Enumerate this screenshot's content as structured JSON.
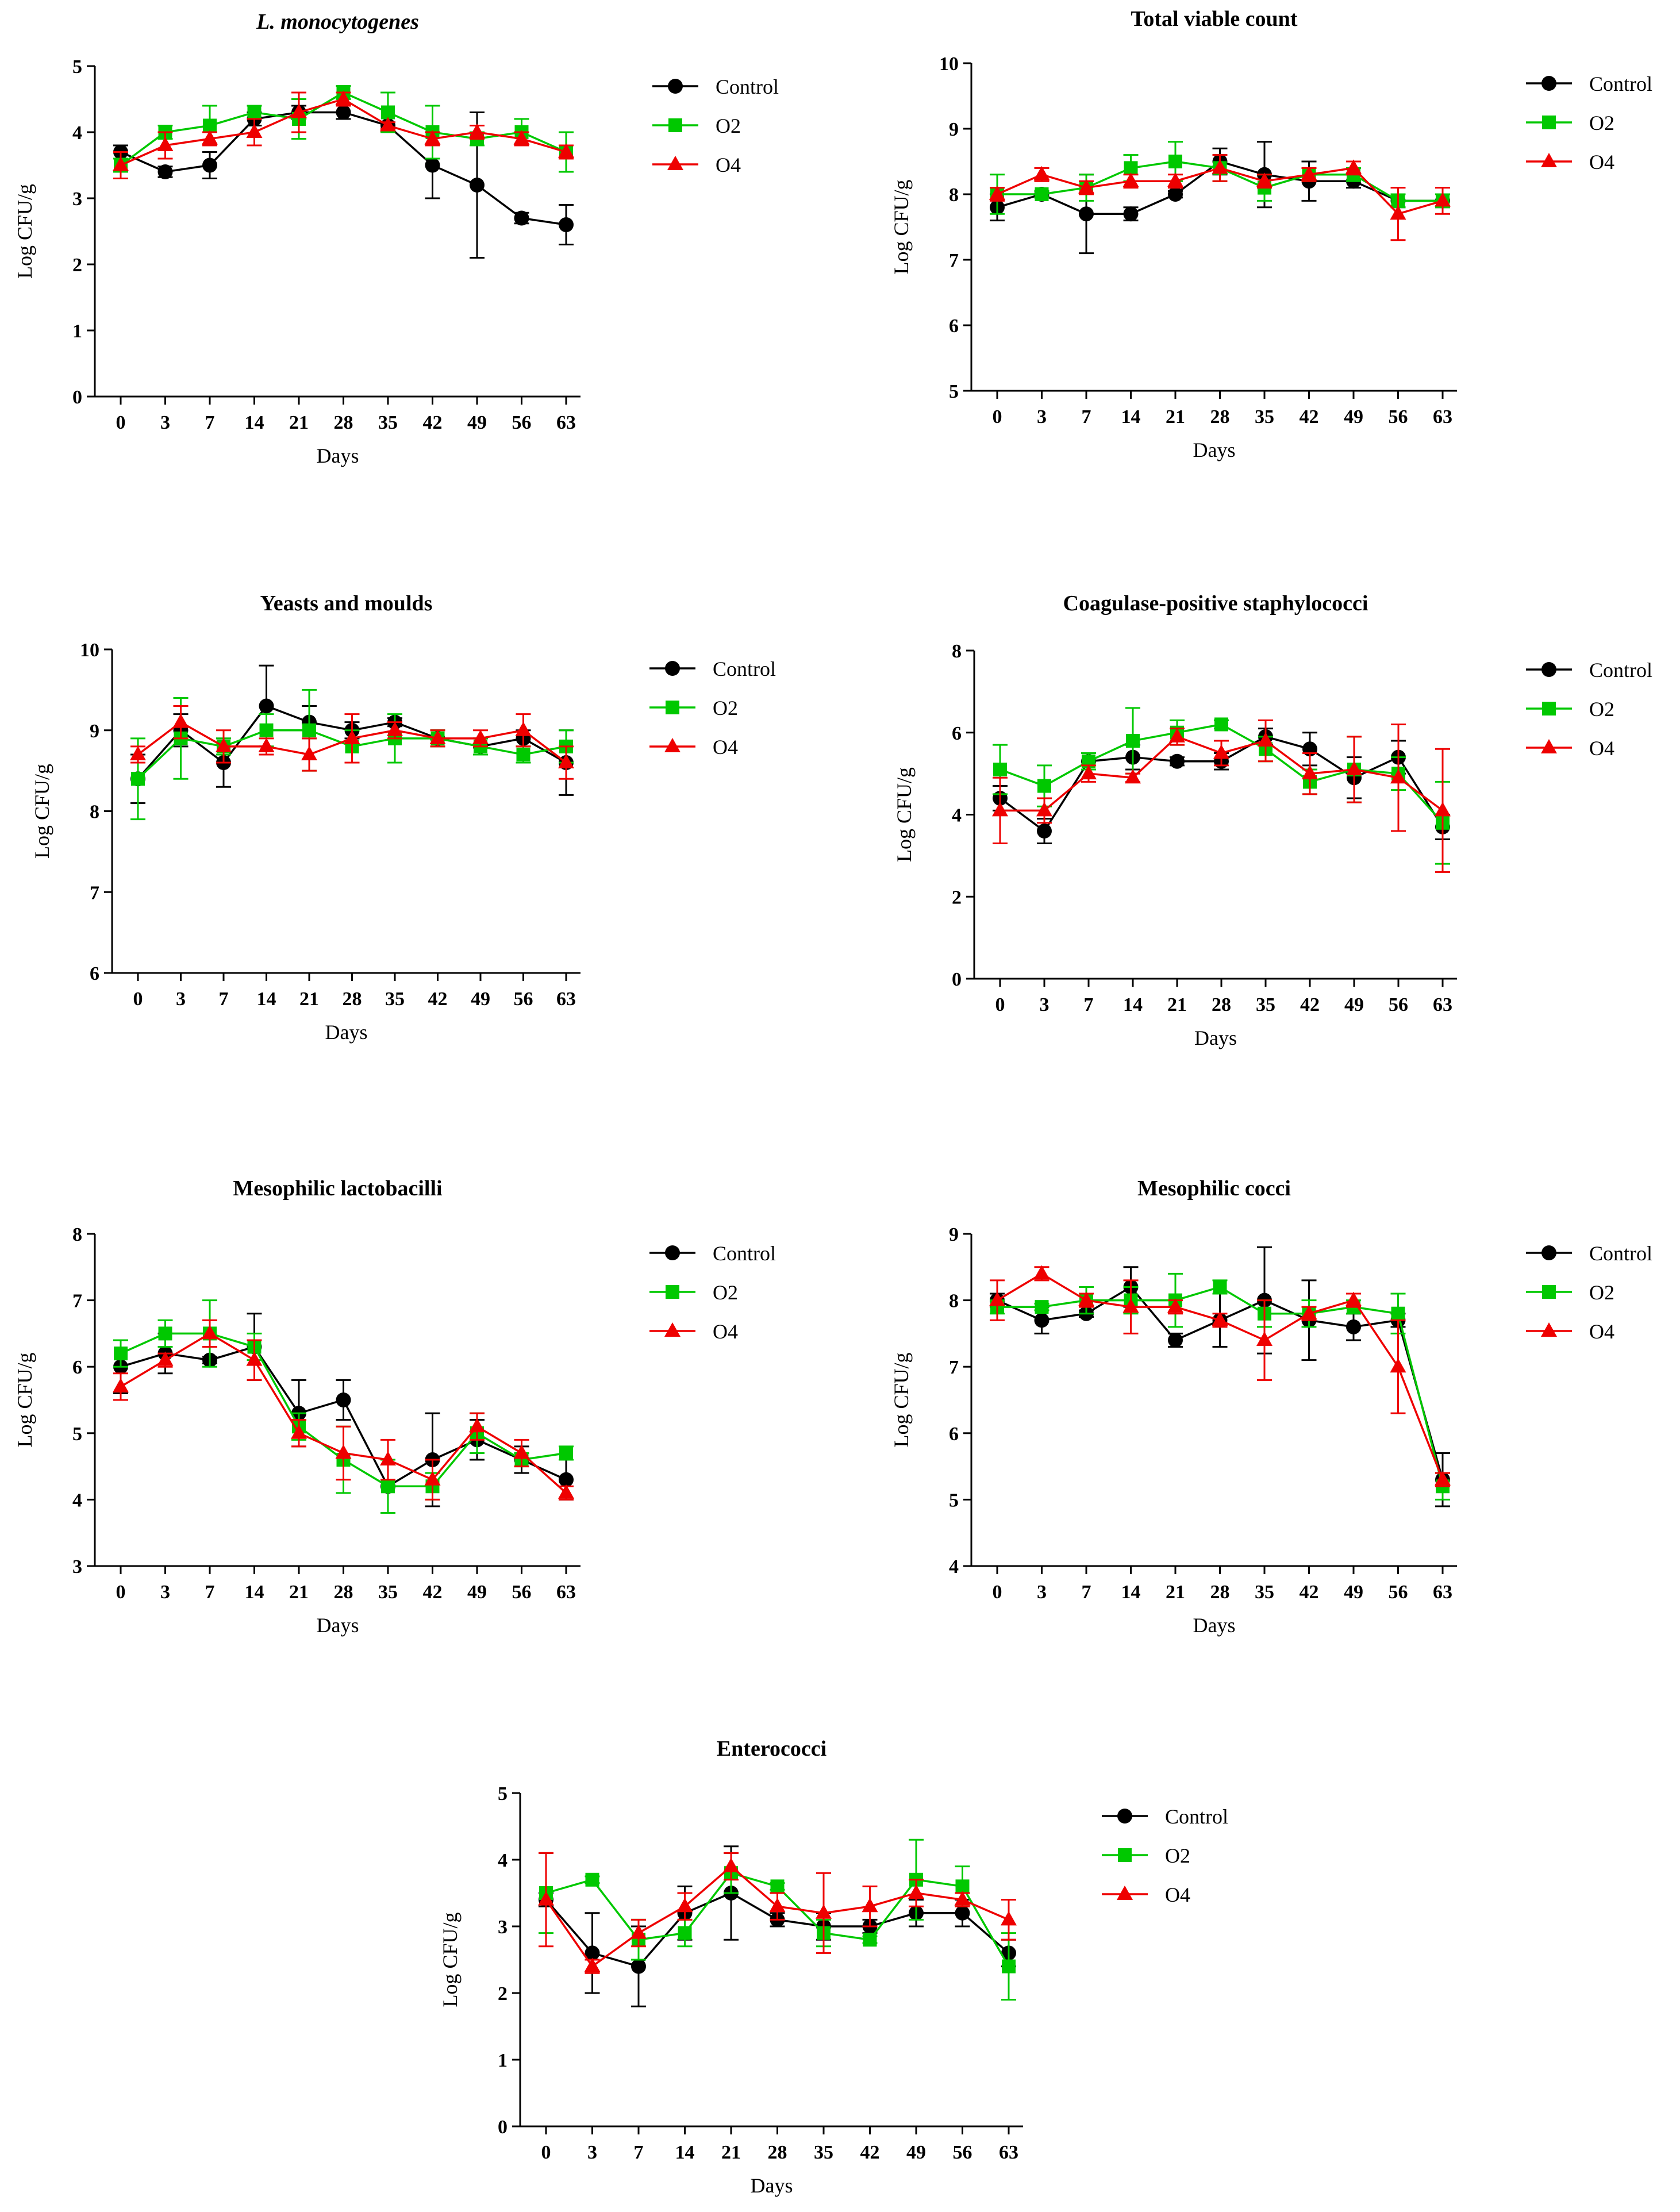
{
  "colors": {
    "Control": "#000000",
    "O2": "#00c800",
    "O4": "#ee0000"
  },
  "chart_data": [
    {
      "type": "line",
      "title": "L. monocytogenes",
      "title_italic": true,
      "xlabel": "Days",
      "ylabel": "Log CFU/g",
      "categories": [
        "0",
        "3",
        "7",
        "14",
        "21",
        "28",
        "35",
        "42",
        "49",
        "56",
        "63"
      ],
      "ylim": [
        0,
        5
      ],
      "yticks": [
        "0",
        "1",
        "2",
        "3",
        "4",
        "5"
      ],
      "legend": [
        "Control",
        "O2",
        "O4"
      ],
      "series": [
        {
          "name": "Control",
          "marker": "circle",
          "values": [
            3.7,
            3.4,
            3.5,
            4.2,
            4.3,
            4.3,
            4.1,
            3.5,
            3.2,
            2.7,
            2.6
          ],
          "errors": [
            0.1,
            0.08,
            0.2,
            0.1,
            0.1,
            0.1,
            0.05,
            0.5,
            1.1,
            0.08,
            0.3
          ]
        },
        {
          "name": "O2",
          "marker": "square",
          "values": [
            3.5,
            4.0,
            4.1,
            4.3,
            4.2,
            4.6,
            4.3,
            4.0,
            3.9,
            4.0,
            3.7
          ],
          "errors": [
            0.1,
            0.1,
            0.3,
            0.1,
            0.3,
            0.1,
            0.3,
            0.4,
            0.1,
            0.2,
            0.3
          ]
        },
        {
          "name": "O4",
          "marker": "triangle",
          "values": [
            3.5,
            3.8,
            3.9,
            4.0,
            4.3,
            4.5,
            4.1,
            3.9,
            4.0,
            3.9,
            3.7
          ],
          "errors": [
            0.2,
            0.2,
            0.1,
            0.2,
            0.3,
            0.1,
            0.05,
            0.1,
            0.1,
            0.1,
            0.1
          ]
        }
      ]
    },
    {
      "type": "line",
      "title": "Total viable count",
      "title_italic": false,
      "xlabel": "Days",
      "ylabel": "Log CFU/g",
      "categories": [
        "0",
        "3",
        "7",
        "14",
        "21",
        "28",
        "35",
        "42",
        "49",
        "56",
        "63"
      ],
      "ylim": [
        5,
        10
      ],
      "yticks": [
        "5",
        "6",
        "7",
        "8",
        "9",
        "10"
      ],
      "legend": [
        "Control",
        "O2",
        "O4"
      ],
      "series": [
        {
          "name": "Control",
          "marker": "circle",
          "values": [
            7.8,
            8.0,
            7.7,
            7.7,
            8.0,
            8.5,
            8.3,
            8.2,
            8.2,
            7.9,
            7.9
          ],
          "errors": [
            0.2,
            0.05,
            0.6,
            0.1,
            0.05,
            0.2,
            0.5,
            0.3,
            0.1,
            0.1,
            0.1
          ]
        },
        {
          "name": "O2",
          "marker": "square",
          "values": [
            8.0,
            8.0,
            8.1,
            8.4,
            8.5,
            8.4,
            8.1,
            8.3,
            8.3,
            7.9,
            7.9
          ],
          "errors": [
            0.3,
            0.05,
            0.2,
            0.2,
            0.3,
            0.2,
            0.2,
            0.1,
            0.1,
            0.1,
            0.1
          ]
        },
        {
          "name": "O4",
          "marker": "triangle",
          "values": [
            8.0,
            8.3,
            8.1,
            8.2,
            8.2,
            8.4,
            8.2,
            8.3,
            8.4,
            7.7,
            7.9
          ],
          "errors": [
            0.1,
            0.1,
            0.1,
            0.1,
            0.1,
            0.2,
            0.1,
            0.1,
            0.1,
            0.4,
            0.2
          ]
        }
      ]
    },
    {
      "type": "line",
      "title": "Yeasts and moulds",
      "title_italic": false,
      "xlabel": "Days",
      "ylabel": "Log CFU/g",
      "categories": [
        "0",
        "3",
        "7",
        "14",
        "21",
        "28",
        "35",
        "42",
        "49",
        "56",
        "63"
      ],
      "ylim": [
        6,
        10
      ],
      "yticks": [
        "6",
        "7",
        "8",
        "9",
        "10"
      ],
      "legend": [
        "Control",
        "O2",
        "O4"
      ],
      "series": [
        {
          "name": "Control",
          "marker": "circle",
          "values": [
            8.4,
            9.0,
            8.6,
            9.3,
            9.1,
            9.0,
            9.1,
            8.9,
            8.8,
            8.9,
            8.6
          ],
          "errors": [
            0.3,
            0.2,
            0.3,
            0.5,
            0.2,
            0.1,
            0.05,
            0.1,
            0.1,
            0.1,
            0.4
          ]
        },
        {
          "name": "O2",
          "marker": "square",
          "values": [
            8.4,
            8.9,
            8.8,
            9.0,
            9.0,
            8.8,
            8.9,
            8.9,
            8.8,
            8.7,
            8.8
          ],
          "errors": [
            0.5,
            0.5,
            0.1,
            0.2,
            0.5,
            0.2,
            0.3,
            0.1,
            0.1,
            0.1,
            0.2
          ]
        },
        {
          "name": "O4",
          "marker": "triangle",
          "values": [
            8.7,
            9.1,
            8.8,
            8.8,
            8.7,
            8.9,
            9.0,
            8.9,
            8.9,
            9.0,
            8.6
          ],
          "errors": [
            0.1,
            0.2,
            0.2,
            0.1,
            0.2,
            0.3,
            0.1,
            0.1,
            0.1,
            0.2,
            0.2
          ]
        }
      ]
    },
    {
      "type": "line",
      "title": "Coagulase-positive staphylococci",
      "title_italic": false,
      "xlabel": "Days",
      "ylabel": "Log CFU/g",
      "categories": [
        "0",
        "3",
        "7",
        "14",
        "21",
        "28",
        "35",
        "42",
        "49",
        "56",
        "63"
      ],
      "ylim": [
        0,
        8
      ],
      "yticks": [
        "0",
        "2",
        "4",
        "6",
        "8"
      ],
      "legend": [
        "Control",
        "O2",
        "O4"
      ],
      "series": [
        {
          "name": "Control",
          "marker": "circle",
          "values": [
            4.4,
            3.6,
            5.3,
            5.4,
            5.3,
            5.3,
            5.9,
            5.6,
            4.9,
            5.4,
            3.7
          ],
          "errors": [
            0.3,
            0.3,
            0.2,
            0.3,
            0.1,
            0.2,
            0.2,
            0.4,
            0.5,
            0.4,
            0.3
          ]
        },
        {
          "name": "O2",
          "marker": "square",
          "values": [
            5.1,
            4.7,
            5.3,
            5.8,
            6.0,
            6.2,
            5.6,
            4.8,
            5.1,
            5.0,
            3.8
          ],
          "errors": [
            0.6,
            0.5,
            0.2,
            0.8,
            0.3,
            0.1,
            0.3,
            0.3,
            0.8,
            0.4,
            1.0
          ]
        },
        {
          "name": "O4",
          "marker": "triangle",
          "values": [
            4.1,
            4.1,
            5.0,
            4.9,
            5.9,
            5.5,
            5.8,
            5.0,
            5.1,
            4.9,
            4.1
          ],
          "errors": [
            0.8,
            0.3,
            0.2,
            0.1,
            0.2,
            0.3,
            0.5,
            0.5,
            0.8,
            1.3,
            1.5
          ]
        }
      ]
    },
    {
      "type": "line",
      "title": "Mesophilic lactobacilli",
      "title_italic": false,
      "xlabel": "Days",
      "ylabel": "Log CFU/g",
      "categories": [
        "0",
        "3",
        "7",
        "14",
        "21",
        "28",
        "35",
        "42",
        "49",
        "56",
        "63"
      ],
      "ylim": [
        3,
        8
      ],
      "yticks": [
        "3",
        "4",
        "5",
        "6",
        "7",
        "8"
      ],
      "legend": [
        "Control",
        "O2",
        "O4"
      ],
      "series": [
        {
          "name": "Control",
          "marker": "circle",
          "values": [
            6.0,
            6.2,
            6.1,
            6.3,
            5.3,
            5.5,
            4.2,
            4.6,
            4.9,
            4.6,
            4.3
          ],
          "errors": [
            0.4,
            0.3,
            0.05,
            0.5,
            0.5,
            0.3,
            0.4,
            0.7,
            0.3,
            0.2,
            0.3
          ]
        },
        {
          "name": "O2",
          "marker": "square",
          "values": [
            6.2,
            6.5,
            6.5,
            6.3,
            5.1,
            4.6,
            4.2,
            4.2,
            5.0,
            4.6,
            4.7
          ],
          "errors": [
            0.2,
            0.2,
            0.5,
            0.2,
            0.2,
            0.5,
            0.4,
            0.2,
            0.3,
            0.1,
            0.1
          ]
        },
        {
          "name": "O4",
          "marker": "triangle",
          "values": [
            5.7,
            6.1,
            6.5,
            6.1,
            5.0,
            4.7,
            4.6,
            4.3,
            5.1,
            4.7,
            4.1
          ],
          "errors": [
            0.2,
            0.1,
            0.2,
            0.3,
            0.2,
            0.4,
            0.3,
            0.3,
            0.2,
            0.2,
            0.1
          ]
        }
      ]
    },
    {
      "type": "line",
      "title": "Mesophilic cocci",
      "title_italic": false,
      "xlabel": "Days",
      "ylabel": "Log CFU/g",
      "categories": [
        "0",
        "3",
        "7",
        "14",
        "21",
        "28",
        "35",
        "42",
        "49",
        "56",
        "63"
      ],
      "ylim": [
        4,
        9
      ],
      "yticks": [
        "4",
        "5",
        "6",
        "7",
        "8",
        "9"
      ],
      "legend": [
        "Control",
        "O2",
        "O4"
      ],
      "series": [
        {
          "name": "Control",
          "marker": "circle",
          "values": [
            8.0,
            7.7,
            7.8,
            8.2,
            7.4,
            7.7,
            8.0,
            7.7,
            7.6,
            7.7,
            5.3
          ],
          "errors": [
            0.1,
            0.2,
            0.05,
            0.3,
            0.1,
            0.4,
            0.8,
            0.6,
            0.2,
            0.1,
            0.4
          ]
        },
        {
          "name": "O2",
          "marker": "square",
          "values": [
            7.9,
            7.9,
            8.0,
            8.0,
            8.0,
            8.2,
            7.8,
            7.8,
            7.9,
            7.8,
            5.2
          ],
          "errors": [
            0.1,
            0.05,
            0.2,
            0.2,
            0.4,
            0.1,
            0.2,
            0.2,
            0.1,
            0.3,
            0.2
          ]
        },
        {
          "name": "O4",
          "marker": "triangle",
          "values": [
            8.0,
            8.4,
            8.0,
            7.9,
            7.9,
            7.7,
            7.4,
            7.8,
            8.0,
            7.0,
            5.3
          ],
          "errors": [
            0.3,
            0.1,
            0.1,
            0.4,
            0.1,
            0.1,
            0.6,
            0.1,
            0.1,
            0.7,
            0.1
          ]
        }
      ]
    },
    {
      "type": "line",
      "title": "Enterococci",
      "title_italic": false,
      "xlabel": "Days",
      "ylabel": "Log CFU/g",
      "categories": [
        "0",
        "3",
        "7",
        "14",
        "21",
        "28",
        "35",
        "42",
        "49",
        "56",
        "63"
      ],
      "ylim": [
        0,
        5
      ],
      "yticks": [
        "0",
        "1",
        "2",
        "3",
        "4",
        "5"
      ],
      "legend": [
        "Control",
        "O2",
        "O4"
      ],
      "series": [
        {
          "name": "Control",
          "marker": "circle",
          "values": [
            3.4,
            2.6,
            2.4,
            3.2,
            3.5,
            3.1,
            3.0,
            3.0,
            3.2,
            3.2,
            2.6
          ],
          "errors": [
            0.1,
            0.6,
            0.6,
            0.4,
            0.7,
            0.1,
            0.2,
            0.1,
            0.2,
            0.2,
            0.2
          ]
        },
        {
          "name": "O2",
          "marker": "square",
          "values": [
            3.5,
            3.7,
            2.8,
            2.9,
            3.8,
            3.6,
            2.9,
            2.8,
            3.7,
            3.6,
            2.4
          ],
          "errors": [
            0.6,
            0.05,
            0.3,
            0.2,
            0.3,
            0.05,
            0.2,
            0.05,
            0.6,
            0.3,
            0.5
          ]
        },
        {
          "name": "O4",
          "marker": "triangle",
          "values": [
            3.4,
            2.4,
            2.9,
            3.3,
            3.9,
            3.3,
            3.2,
            3.3,
            3.5,
            3.4,
            3.1
          ],
          "errors": [
            0.7,
            0.1,
            0.2,
            0.2,
            0.2,
            0.2,
            0.6,
            0.3,
            0.2,
            0.1,
            0.3
          ]
        }
      ]
    }
  ]
}
